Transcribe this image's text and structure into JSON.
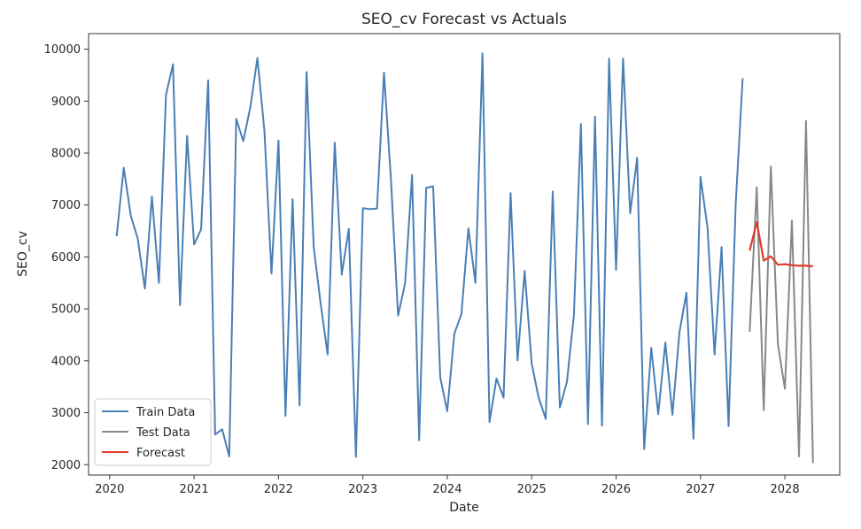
{
  "chart_data": {
    "type": "line",
    "title": "SEO_cv Forecast vs Actuals",
    "xlabel": "Date",
    "ylabel": "SEO_cv",
    "xlim": [
      2019.75,
      2028.65
    ],
    "ylim": [
      1800,
      10300
    ],
    "x_ticks": [
      2020,
      2021,
      2022,
      2023,
      2024,
      2025,
      2026,
      2027,
      2028
    ],
    "x_tick_labels": [
      "2020",
      "2021",
      "2022",
      "2023",
      "2024",
      "2025",
      "2026",
      "2027",
      "2028"
    ],
    "y_ticks": [
      2000,
      3000,
      4000,
      5000,
      6000,
      7000,
      8000,
      9000,
      10000
    ],
    "y_tick_labels": [
      "2000",
      "3000",
      "4000",
      "5000",
      "6000",
      "7000",
      "8000",
      "9000",
      "10000"
    ],
    "legend_position": "lower-left",
    "grid": false,
    "series": [
      {
        "name": "Train Data",
        "color": "#4a7fb5",
        "x": [
          2020.083,
          2020.167,
          2020.25,
          2020.333,
          2020.417,
          2020.5,
          2020.583,
          2020.667,
          2020.75,
          2020.833,
          2020.917,
          2021.0,
          2021.083,
          2021.167,
          2021.25,
          2021.333,
          2021.417,
          2021.5,
          2021.583,
          2021.667,
          2021.75,
          2021.833,
          2021.917,
          2022.0,
          2022.083,
          2022.167,
          2022.25,
          2022.333,
          2022.417,
          2022.5,
          2022.583,
          2022.667,
          2022.75,
          2022.833,
          2022.917,
          2023.0,
          2023.083,
          2023.167,
          2023.25,
          2023.333,
          2023.417,
          2023.5,
          2023.583,
          2023.667,
          2023.75,
          2023.833,
          2023.917,
          2024.0,
          2024.083,
          2024.167,
          2024.25,
          2024.333,
          2024.417,
          2024.5,
          2024.583,
          2024.667,
          2024.75,
          2024.833,
          2024.917,
          2025.0,
          2025.083,
          2025.167,
          2025.25,
          2025.333,
          2025.417,
          2025.5,
          2025.583,
          2025.667,
          2025.75,
          2025.833,
          2025.917,
          2026.0,
          2026.083,
          2026.167,
          2026.25,
          2026.333,
          2026.417,
          2026.5,
          2026.583,
          2026.667,
          2026.75,
          2026.833,
          2026.917,
          2027.0,
          2027.083,
          2027.167,
          2027.25,
          2027.333,
          2027.417,
          2027.5
        ],
        "y": [
          6400,
          7720,
          6800,
          6350,
          5390,
          7160,
          5500,
          9120,
          9710,
          5070,
          8330,
          6240,
          6530,
          9400,
          2580,
          2680,
          2160,
          8660,
          8230,
          8890,
          9830,
          8430,
          5680,
          8240,
          2940,
          7110,
          3140,
          9560,
          6200,
          5100,
          4120,
          8200,
          5660,
          6540,
          2150,
          6940,
          6920,
          6930,
          9550,
          7480,
          4870,
          5490,
          7580,
          2470,
          7330,
          7360,
          3680,
          3030,
          4520,
          4900,
          6550,
          5500,
          9920,
          2820,
          3660,
          3290,
          7230,
          4010,
          5730,
          3950,
          3290,
          2880,
          7260,
          3100,
          3590,
          4880,
          8560,
          2780,
          8700,
          2750,
          9820,
          5750,
          9820,
          6840,
          7910,
          2300,
          4250,
          2970,
          4350,
          2960,
          4540,
          5310,
          2500,
          7540,
          6570,
          4120,
          6190,
          2740,
          7000,
          9440
        ]
      },
      {
        "name": "Test Data",
        "color": "#888888",
        "x": [
          2027.583,
          2027.667,
          2027.75,
          2027.833,
          2027.917,
          2028.0,
          2028.083,
          2028.167,
          2028.25,
          2028.333
        ],
        "y": [
          4560,
          7340,
          3050,
          7740,
          4320,
          3460,
          6700,
          2160,
          8620,
          2030
        ]
      },
      {
        "name": "Forecast",
        "color": "#e03b2f",
        "x": [
          2027.583,
          2027.667,
          2027.75,
          2027.833,
          2027.917,
          2028.0,
          2028.083,
          2028.167,
          2028.25,
          2028.333
        ],
        "y": [
          6120,
          6670,
          5930,
          6010,
          5850,
          5860,
          5840,
          5830,
          5830,
          5820
        ]
      }
    ]
  }
}
